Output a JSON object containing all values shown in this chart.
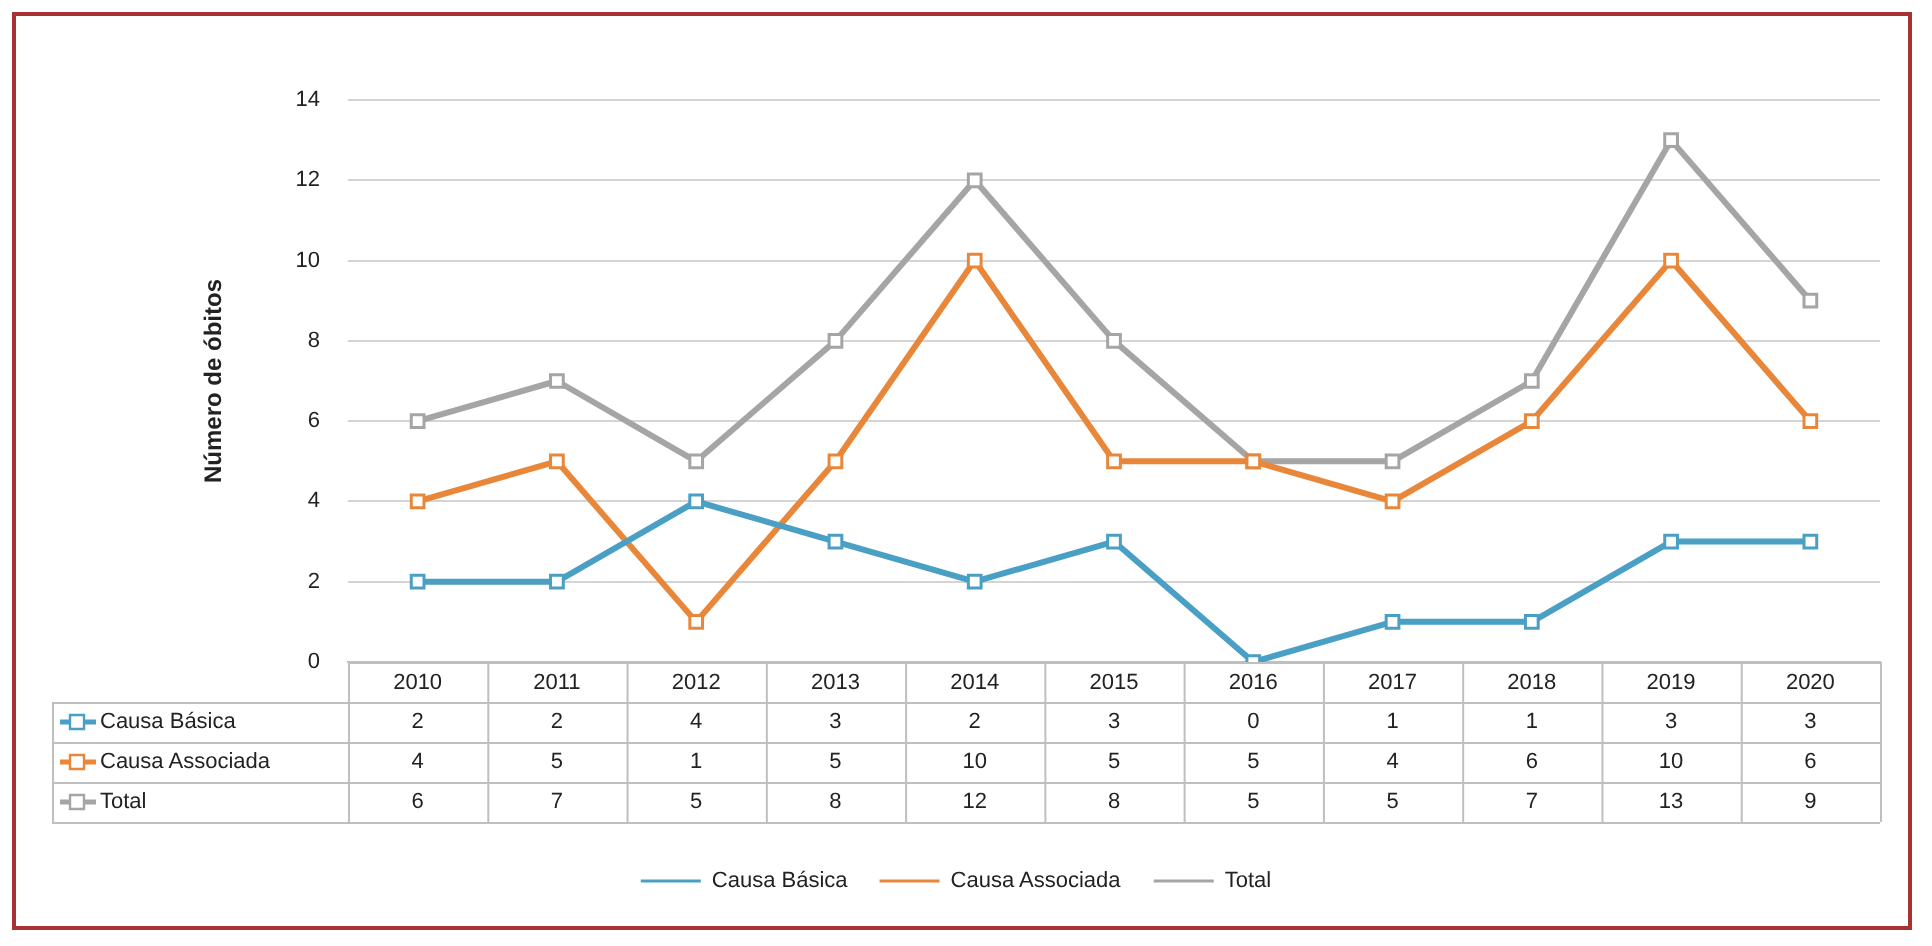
{
  "chart_data": {
    "type": "line",
    "ylabel": "Número de óbitos",
    "categories": [
      "2010",
      "2011",
      "2012",
      "2013",
      "2014",
      "2015",
      "2016",
      "2017",
      "2018",
      "2019",
      "2020"
    ],
    "series": [
      {
        "name": "Causa Básica",
        "color": "#4a9fc4",
        "values": [
          2,
          2,
          4,
          3,
          2,
          3,
          0,
          1,
          1,
          3,
          3
        ]
      },
      {
        "name": "Causa Associada",
        "color": "#e8873a",
        "values": [
          4,
          5,
          1,
          5,
          10,
          5,
          5,
          4,
          6,
          10,
          6
        ]
      },
      {
        "name": "Total",
        "color": "#a5a5a5",
        "values": [
          6,
          7,
          5,
          8,
          12,
          8,
          5,
          5,
          7,
          13,
          9
        ]
      }
    ],
    "ylim": [
      0,
      14
    ],
    "yticks": [
      0,
      2,
      4,
      6,
      8,
      10,
      12,
      14
    ],
    "grid": "y",
    "legend": "bottom",
    "marker": "square",
    "line_style": "solid",
    "data_labels": true
  }
}
